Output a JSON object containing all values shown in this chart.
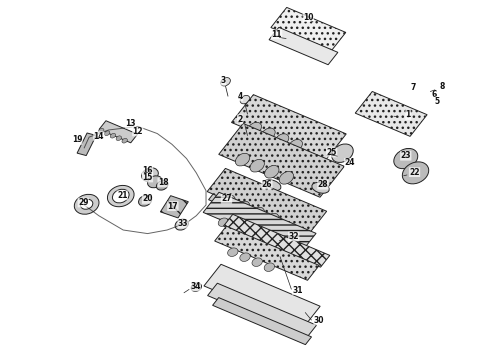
{
  "title": "",
  "background_color": "#ffffff",
  "fig_width": 4.9,
  "fig_height": 3.6,
  "dpi": 100,
  "line_color": "#222222",
  "text_color": "#111111",
  "font_size": 5.5
}
